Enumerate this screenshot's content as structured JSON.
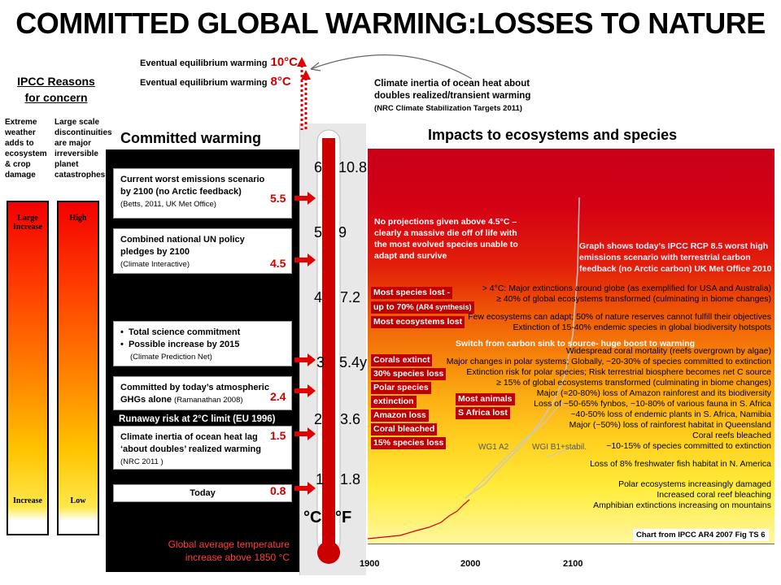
{
  "title": "COMMITTED GLOBAL WARMING:LOSSES TO NATURE",
  "equilibrium": [
    {
      "label": "Eventual equilibrium warming",
      "value": "10°C"
    },
    {
      "label": "Eventual equilibrium warming",
      "value": "8°C"
    }
  ],
  "inertia_note": {
    "line1": "Climate inertia of ocean heat about",
    "line2": "doubles realized/transient warming",
    "source": "(NRC Climate Stabilization Targets 2011)"
  },
  "ipcc": {
    "heading1": "IPCC Reasons",
    "heading2": "for concern",
    "col1": [
      "Extreme",
      "weather",
      "adds to",
      "ecosystem",
      "& crop",
      "damage"
    ],
    "col2": [
      "Large scale",
      "discontinuities",
      "are major",
      "irreversible",
      "planet",
      "catastrophes"
    ],
    "bar1_top": [
      "Large",
      "Increase"
    ],
    "bar1_bottom": "Increase",
    "bar2_top": "High",
    "bar2_bottom": "Low"
  },
  "committed": {
    "heading": "Committed warming",
    "boxes": [
      {
        "l1": "Current worst emissions scenario",
        "l2": "by 2100 (no Arctic feedback)",
        "src": "(Betts, 2011, UK Met Office)",
        "value": "5.5"
      },
      {
        "l1": "Combined national UN policy",
        "l2": "pledges by 2100",
        "src": "(Climate Interactive)",
        "value": "4.5"
      },
      {
        "b1": "Total science commitment",
        "b2": "Possible increase by 2015",
        "src": "(Climate Prediction Net)"
      },
      {
        "l1": "Committed by today’s atmospheric",
        "l2": "GHGs alone",
        "src": "(Ramanathan 2008)",
        "value": "2.4"
      },
      {
        "l1": "Climate inertia of ocean heat lag",
        "l2": "‘about doubles’ realized warming",
        "src": "(NRC 2011 )",
        "value": "1.5"
      },
      {
        "l1": "Today",
        "value": "0.8"
      }
    ],
    "runaway": "Runaway risk  at 2°C limit  (EU 1996)",
    "footer1": "Global average temperature",
    "footer2": "increase above 1850  °C"
  },
  "thermometer": {
    "celsius": [
      "6",
      "5",
      "4",
      "3",
      "2",
      "1"
    ],
    "fahrenheit": [
      "10.8",
      "9",
      "7.2",
      "5.4y",
      "3.6",
      "1.8"
    ],
    "unit_c": "°C",
    "unit_f": "°F"
  },
  "chart": {
    "title": "Impacts to ecosystems and species",
    "no_projections": "No projections  given above 4.5°C – clearly a massive die off of life with the most evolved species unable to adapt and survive",
    "graph_note": "Graph shows today’s IPCC RCP 8.5 worst high emissions scenario with terrestrial carbon feedback (no Arctic carbon) UK Met Office 2010",
    "most_species": "Most species lost -",
    "up_to": "up to 70%",
    "ar4": "(AR4 synthesis)",
    "most_eco": "Most ecosystems lost",
    "switch": "Switch from carbon sink to source- huge boost to warming",
    "red_labels": [
      "Corals extinct",
      "30% species loss",
      "Polar species",
      "extinction",
      "Amazon loss",
      "Coral bleached",
      "15% species loss"
    ],
    "most_animals": "Most animals",
    "s_africa": "S Africa lost",
    "impacts": [
      "> 4°C: Major extinctions around globe (as exemplified for USA and Australia)",
      "≥ 40% of global ecosystems transformed (culminating in biome changes)",
      "Few ecosystems can adapt;  50% of nature reserves cannot fulfill their objectives",
      "Extinction of 15-40% endemic species in global biodiversity hotspots",
      "Widespread coral mortality (reefs overgrown by algae)",
      "Major changes in polar systems;  Globally, ~20-30% of species committed to extinction",
      "Extinction risk for polar species;  Risk terrestrial biosphere becomes net C source",
      "≥ 15% of global ecosystems transformed (culminating in biome changes)",
      "Major (≈20-80%) loss of Amazon rainforest and its biodiversity",
      "Loss of ~50-65% fynbos, ~10-80% of various fauna in S. Africa",
      "~40-50% loss of endemic plants in S. Africa, Namibia",
      "Major (~50%) loss of rainforest habitat in Queensland",
      "Coral reefs bleached",
      "~10-15% of species committed to extinction",
      "Loss of 8% freshwater fish habitat in N. America",
      "Polar ecosystems increasingly damaged",
      "Increased coral reef bleaching",
      "Amphibian extinctions increasing on mountains"
    ],
    "wg1": "WG1 A2",
    "wgi": "WGI B1+stabil.",
    "source": "Chart from IPCC AR4 2007 Fig TS 6",
    "years": [
      "1900",
      "2000",
      "2100"
    ]
  }
}
